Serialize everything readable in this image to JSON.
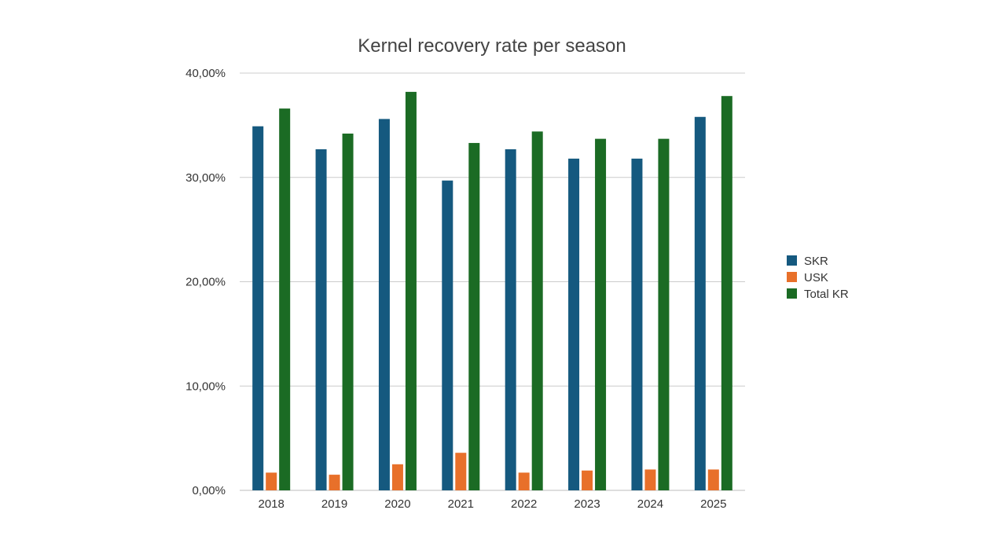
{
  "chart_data": {
    "type": "bar",
    "title": "Kernel recovery rate per season",
    "xlabel": "",
    "ylabel": "",
    "categories": [
      "2018",
      "2019",
      "2020",
      "2021",
      "2022",
      "2023",
      "2024",
      "2025"
    ],
    "ylim": [
      0,
      40
    ],
    "yticks": [
      0,
      10,
      20,
      30,
      40
    ],
    "ytick_labels": [
      "0,00%",
      "10,00%",
      "20,00%",
      "30,00%",
      "40,00%"
    ],
    "grid": true,
    "legend_position": "right",
    "series": [
      {
        "name": "SKR",
        "color": "#15597f",
        "values": [
          34.9,
          32.7,
          35.6,
          29.7,
          32.7,
          31.8,
          31.8,
          35.8
        ]
      },
      {
        "name": "USK",
        "color": "#e8702a",
        "values": [
          1.7,
          1.5,
          2.5,
          3.6,
          1.7,
          1.9,
          2.0,
          2.0
        ]
      },
      {
        "name": "Total KR",
        "color": "#1b6b24",
        "values": [
          36.6,
          34.2,
          38.2,
          33.3,
          34.4,
          33.7,
          33.7,
          37.8
        ]
      }
    ]
  }
}
